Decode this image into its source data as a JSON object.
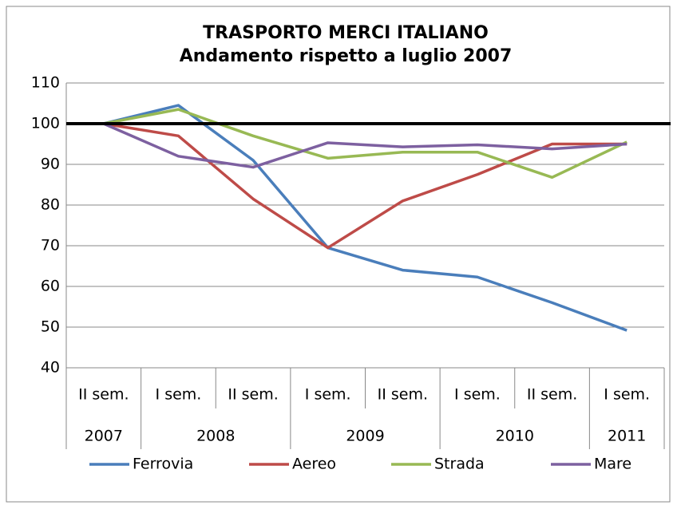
{
  "chart_data": {
    "type": "line",
    "title": [
      "TRASPORTO MERCI ITALIANO",
      "Andamento rispetto a luglio 2007"
    ],
    "category_groups": [
      {
        "label": "2007",
        "categories": [
          "II sem."
        ]
      },
      {
        "label": "2008",
        "categories": [
          "I sem.",
          "II sem."
        ]
      },
      {
        "label": "2009",
        "categories": [
          "I sem.",
          "II sem."
        ]
      },
      {
        "label": "2010",
        "categories": [
          "I sem.",
          "II sem."
        ]
      },
      {
        "label": "2011",
        "categories": [
          "I sem."
        ]
      }
    ],
    "series": [
      {
        "name": "Ferrovia",
        "color": "#4a7ebb",
        "values": [
          100,
          104.5,
          91,
          69.5,
          64,
          62.3,
          56,
          49.2
        ]
      },
      {
        "name": "Aereo",
        "color": "#be4b48",
        "values": [
          100,
          97,
          81.5,
          69.5,
          81,
          87.5,
          95,
          95
        ]
      },
      {
        "name": "Strada",
        "color": "#98b954",
        "values": [
          100,
          103.5,
          97,
          91.5,
          93,
          93,
          86.8,
          95.5
        ]
      },
      {
        "name": "Mare",
        "color": "#7d60a0",
        "values": [
          100,
          92,
          89.3,
          95.3,
          94.3,
          94.8,
          93.8,
          95
        ]
      }
    ],
    "reference_line": {
      "value": 100,
      "color": "#000000"
    },
    "ylim": [
      40,
      110
    ],
    "yticks": [
      40,
      50,
      60,
      70,
      80,
      90,
      100,
      110
    ],
    "grid": true,
    "legend": "bottom"
  }
}
